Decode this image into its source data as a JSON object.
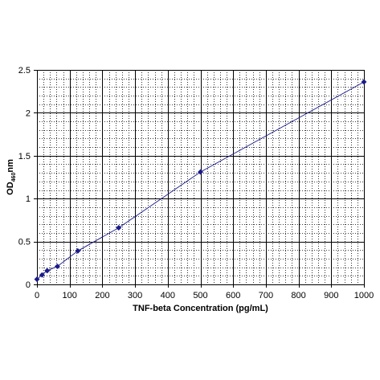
{
  "chart_data": {
    "type": "scatter",
    "title": "",
    "xlabel": "TNF-beta Concentration (pg/mL)",
    "ylabel": {
      "main": "OD",
      "subscript": "460",
      "suffix": "nm"
    },
    "xlim": [
      0,
      1000
    ],
    "ylim": [
      0,
      2.5
    ],
    "x_ticks": [
      0,
      100,
      200,
      300,
      400,
      500,
      600,
      700,
      800,
      900,
      1000
    ],
    "x_tick_labels": [
      "0",
      "100",
      "200",
      "300",
      "400",
      "500",
      "600",
      "700",
      "800",
      "900",
      "1000"
    ],
    "y_ticks": [
      0,
      0.5,
      1,
      1.5,
      2,
      2.5
    ],
    "y_tick_labels": [
      "0",
      "0.5",
      "1",
      "1.5",
      "2",
      "2.5"
    ],
    "grid": true,
    "minor_grid": true,
    "legend": "none",
    "series": [
      {
        "x": [
          0,
          15.6,
          31.25,
          62.5,
          125,
          250,
          500,
          1000
        ],
        "y": [
          0.06,
          0.11,
          0.16,
          0.21,
          0.39,
          0.66,
          1.31,
          2.36
        ],
        "marker": "diamond",
        "line": "connected"
      }
    ],
    "colors": {
      "series": "#1a1a8c",
      "grid_major": "#000000",
      "grid_minor": "#000000"
    }
  }
}
